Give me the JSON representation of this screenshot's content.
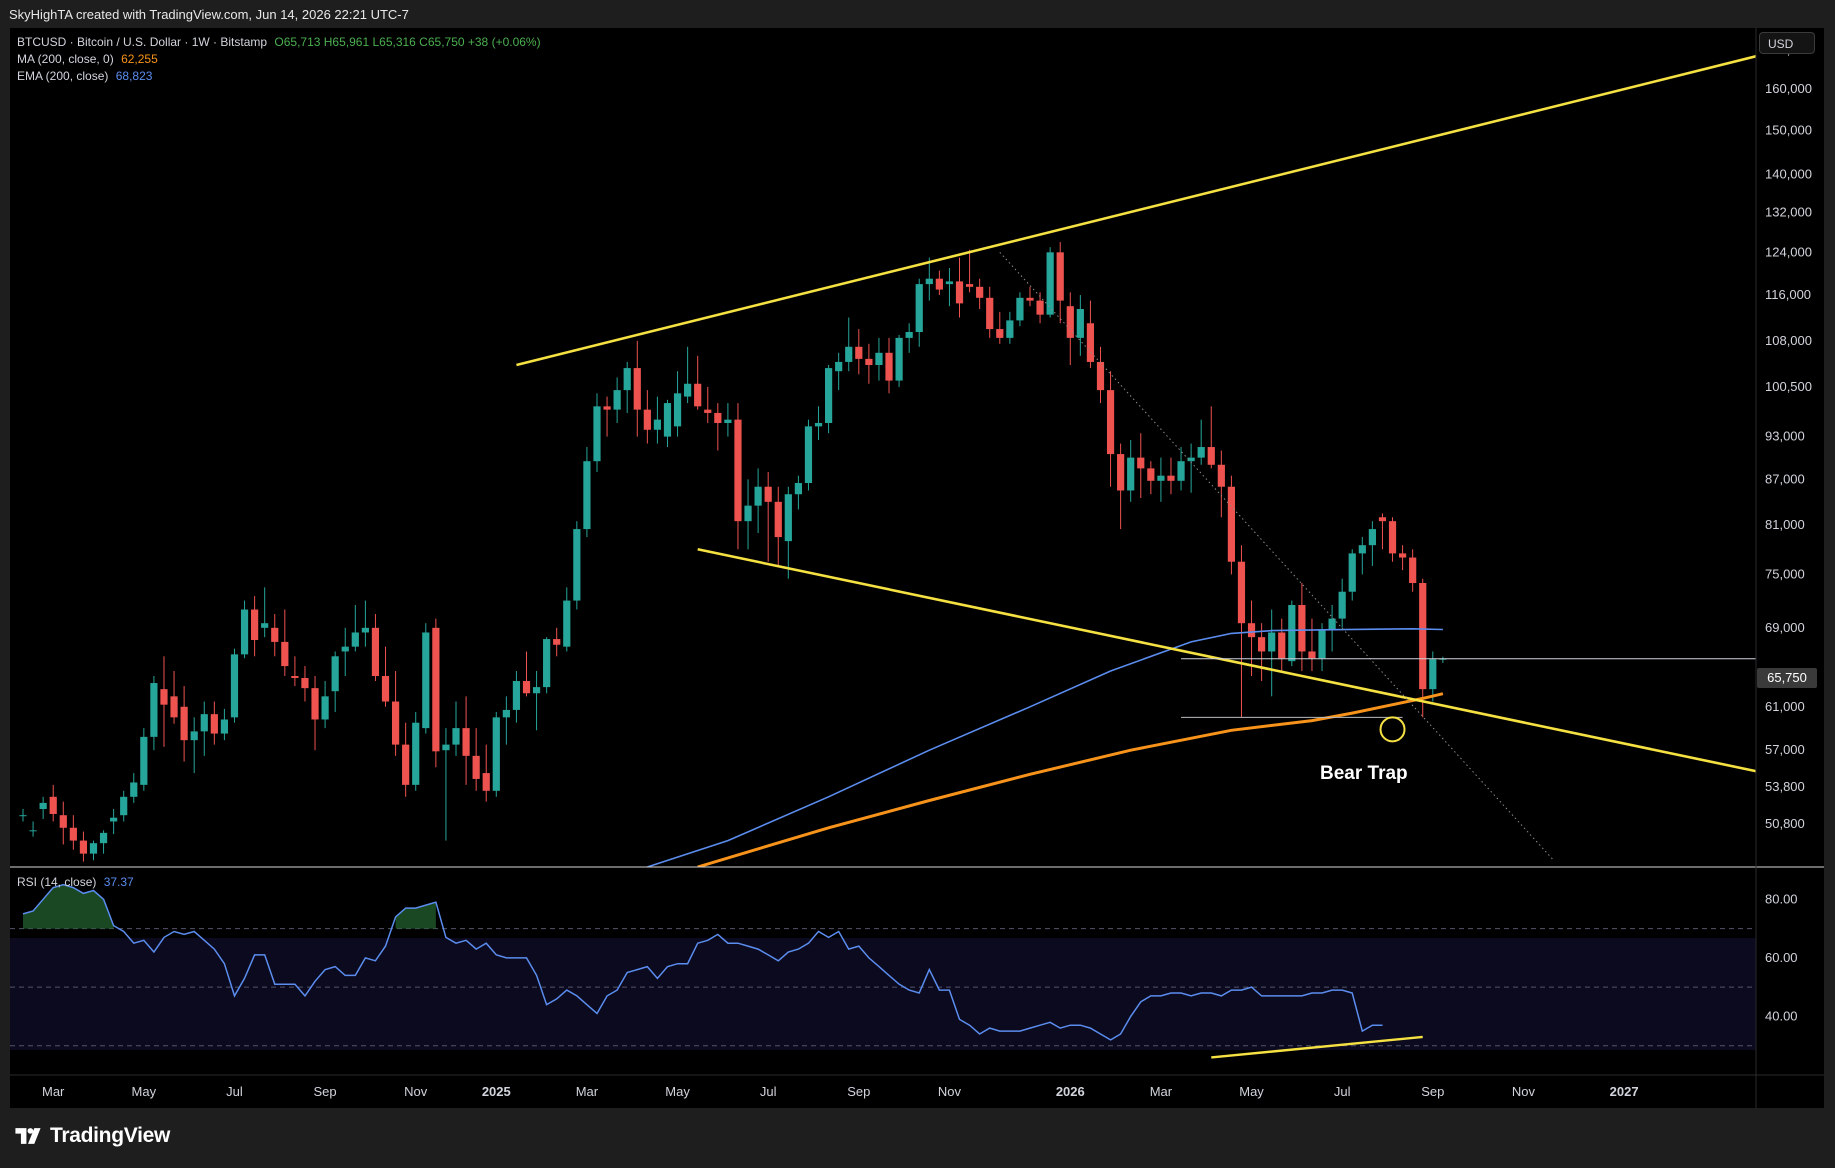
{
  "credit": "SkyHighTA created with TradingView.com, Jun 14, 2026 22:21 UTC-7",
  "legend": {
    "symbol": "BTCUSD · Bitcoin / U.S. Dollar · 1W · Bitstamp",
    "ohlc": "O65,713  H65,961  L65,316  C65,750  +38 (+0.06%)",
    "ma_label": "MA (200, close, 0)",
    "ma_value": "62,255",
    "ema_label": "EMA (200, close)",
    "ema_value": "68,823",
    "rsi_label": "RSI (14, close)",
    "rsi_value": "37.37"
  },
  "currency": "USD",
  "current_price": "65,750",
  "annotation": "Bear Trap",
  "brand": "TradingView",
  "colors": {
    "background": "#000000",
    "up_candle": "#26a69a",
    "down_candle": "#ef5350",
    "trendline": "#f5e142",
    "ma": "#f7931a",
    "ema": "#5b8def",
    "rsi_line": "#5b8def"
  },
  "chart_data": [
    {
      "type": "candlestick",
      "scale": "log",
      "ylim": [
        47500,
        176000
      ],
      "y_ticks": [
        "170,000",
        "160,000",
        "150,000",
        "140,000",
        "132,000",
        "124,000",
        "116,000",
        "108,000",
        "100,500",
        "93,000",
        "87,000",
        "81,000",
        "75,000",
        "69,000",
        "65,750",
        "61,000",
        "57,000",
        "53,800",
        "50,800"
      ],
      "x_ticks": [
        "Mar",
        "May",
        "Jul",
        "Sep",
        "Nov",
        "2025",
        "Mar",
        "May",
        "Jul",
        "Sep",
        "Nov",
        "2026",
        "Mar",
        "May",
        "Jul",
        "Sep",
        "Nov",
        "2027"
      ],
      "x_range_weeks": [
        0,
        173
      ],
      "candles_ohlc": [
        [
          51500,
          52000,
          51000,
          51500
        ],
        [
          50300,
          51000,
          49800,
          50300
        ],
        [
          52000,
          53000,
          51200,
          52500
        ],
        [
          53000,
          54000,
          51000,
          51600
        ],
        [
          51500,
          52600,
          49200,
          50500
        ],
        [
          50500,
          51500,
          48800,
          49500
        ],
        [
          49500,
          50200,
          47900,
          48500
        ],
        [
          48500,
          49500,
          48000,
          49300
        ],
        [
          49300,
          50300,
          48500,
          50100
        ],
        [
          51000,
          52000,
          50000,
          51300
        ],
        [
          51500,
          53500,
          51000,
          53000
        ],
        [
          53000,
          55000,
          52500,
          54200
        ],
        [
          54000,
          59000,
          53500,
          58200
        ],
        [
          58200,
          64000,
          57000,
          63300
        ],
        [
          62700,
          66000,
          57300,
          61200
        ],
        [
          62000,
          64500,
          59400,
          60000
        ],
        [
          61000,
          63000,
          56000,
          57900
        ],
        [
          57900,
          60000,
          55000,
          58700
        ],
        [
          58700,
          61500,
          56500,
          60300
        ],
        [
          60300,
          61500,
          57500,
          58500
        ],
        [
          58500,
          60800,
          57900,
          59800
        ],
        [
          60000,
          66800,
          59500,
          66200
        ],
        [
          66200,
          72000,
          65800,
          71000
        ],
        [
          71000,
          72500,
          66000,
          67700
        ],
        [
          69000,
          73500,
          68000,
          69500
        ],
        [
          69000,
          70500,
          66000,
          67500
        ],
        [
          67500,
          71000,
          64000,
          65000
        ],
        [
          64000,
          66000,
          63000,
          63800
        ],
        [
          63800,
          65000,
          61500,
          62800
        ],
        [
          62800,
          64000,
          57000,
          59800
        ],
        [
          59800,
          63500,
          59000,
          62000
        ],
        [
          62500,
          66500,
          60500,
          66000
        ],
        [
          66500,
          69000,
          64000,
          67000
        ],
        [
          67000,
          71500,
          66500,
          68500
        ],
        [
          68500,
          72000,
          67000,
          69000
        ],
        [
          69000,
          70500,
          63500,
          64000
        ],
        [
          64000,
          67000,
          61000,
          61500
        ],
        [
          61500,
          64500,
          56500,
          57500
        ],
        [
          57500,
          59500,
          53000,
          54000
        ],
        [
          54000,
          60500,
          53500,
          59500
        ],
        [
          59000,
          69500,
          58500,
          68500
        ],
        [
          69000,
          70000,
          55500,
          56900
        ],
        [
          57000,
          59000,
          49500,
          57500
        ],
        [
          57500,
          61500,
          56500,
          59000
        ],
        [
          59000,
          62000,
          54000,
          56500
        ],
        [
          56500,
          59000,
          53500,
          54500
        ],
        [
          55000,
          57500,
          52600,
          53500
        ],
        [
          53500,
          60500,
          53000,
          60000
        ],
        [
          60000,
          62000,
          57500,
          60700
        ],
        [
          60700,
          64500,
          59500,
          63500
        ],
        [
          63500,
          66500,
          62000,
          62300
        ],
        [
          62300,
          64500,
          58800,
          62900
        ],
        [
          62900,
          68000,
          62300,
          67800
        ],
        [
          67800,
          69000,
          66000,
          67200
        ],
        [
          67000,
          73500,
          66500,
          72000
        ],
        [
          72000,
          81500,
          71000,
          80500
        ],
        [
          80500,
          91500,
          79500,
          89500
        ],
        [
          89500,
          99500,
          88000,
          97500
        ],
        [
          97500,
          99000,
          93000,
          97000
        ],
        [
          97000,
          102000,
          95000,
          100000
        ],
        [
          100000,
          104500,
          96500,
          103500
        ],
        [
          103500,
          108000,
          93000,
          97000
        ],
        [
          97000,
          100000,
          92000,
          94000
        ],
        [
          94000,
          99000,
          92000,
          95500
        ],
        [
          93000,
          98500,
          91500,
          98000
        ],
        [
          94500,
          103000,
          93000,
          99500
        ],
        [
          99000,
          107000,
          98000,
          101000
        ],
        [
          101000,
          105500,
          97000,
          97500
        ],
        [
          97000,
          100500,
          95000,
          96500
        ],
        [
          96500,
          98000,
          91000,
          95000
        ],
        [
          95000,
          98000,
          93000,
          95500
        ],
        [
          95500,
          98000,
          78000,
          81500
        ],
        [
          81500,
          87000,
          78000,
          83500
        ],
        [
          83500,
          88500,
          80000,
          86000
        ],
        [
          86000,
          88000,
          76500,
          84000
        ],
        [
          84000,
          86000,
          76000,
          79500
        ],
        [
          79000,
          86000,
          74500,
          85000
        ],
        [
          85000,
          87500,
          83000,
          86500
        ],
        [
          86500,
          95500,
          85500,
          94500
        ],
        [
          94500,
          97500,
          92500,
          95000
        ],
        [
          95000,
          104000,
          93500,
          103500
        ],
        [
          103000,
          106000,
          100000,
          104500
        ],
        [
          104500,
          112000,
          103000,
          107000
        ],
        [
          107000,
          110000,
          102500,
          105000
        ],
        [
          105000,
          107500,
          101000,
          104000
        ],
        [
          104000,
          108500,
          101500,
          106000
        ],
        [
          106000,
          108500,
          99500,
          101500
        ],
        [
          101500,
          109000,
          100500,
          108500
        ],
        [
          108500,
          111000,
          106000,
          109500
        ],
        [
          109500,
          119000,
          107000,
          118000
        ],
        [
          118000,
          123000,
          115000,
          119000
        ],
        [
          119000,
          120500,
          116000,
          117000
        ],
        [
          118000,
          121000,
          114000,
          118500
        ],
        [
          118500,
          123000,
          112000,
          114500
        ],
        [
          118000,
          124500,
          116500,
          117500
        ],
        [
          117500,
          119000,
          113500,
          115500
        ],
        [
          115500,
          117500,
          108500,
          110000
        ],
        [
          110000,
          113000,
          107500,
          108500
        ],
        [
          108500,
          113000,
          107500,
          111500
        ],
        [
          111500,
          116500,
          110500,
          115500
        ],
        [
          115500,
          117500,
          114000,
          115000
        ],
        [
          115000,
          116500,
          111000,
          112500
        ],
        [
          112500,
          125000,
          112000,
          124000
        ],
        [
          124000,
          126000,
          111000,
          115000
        ],
        [
          114000,
          116500,
          104000,
          108500
        ],
        [
          108500,
          116000,
          105500,
          113500
        ],
        [
          111000,
          115000,
          103500,
          104500
        ],
        [
          104500,
          107000,
          98000,
          100000
        ],
        [
          100000,
          103000,
          86000,
          90500
        ],
        [
          90500,
          92000,
          80500,
          85500
        ],
        [
          85500,
          92500,
          84000,
          90000
        ],
        [
          90000,
          93500,
          84500,
          88500
        ],
        [
          88500,
          89500,
          85000,
          86800
        ],
        [
          86800,
          90000,
          84000,
          87500
        ],
        [
          87500,
          90000,
          85000,
          86800
        ],
        [
          86800,
          91500,
          85500,
          89500
        ],
        [
          89500,
          92000,
          85200,
          90000
        ],
        [
          90000,
          95500,
          89000,
          91500
        ],
        [
          91500,
          97500,
          88500,
          89000
        ],
        [
          89000,
          91000,
          82000,
          86000
        ],
        [
          86000,
          87500,
          75000,
          76500
        ],
        [
          76500,
          78500,
          60000,
          69500
        ],
        [
          69500,
          72000,
          64000,
          68000
        ],
        [
          68000,
          69500,
          63500,
          66500
        ],
        [
          66500,
          71000,
          62000,
          68500
        ],
        [
          68500,
          70000,
          64500,
          65800
        ],
        [
          65500,
          72000,
          65000,
          71500
        ],
        [
          71500,
          74000,
          64500,
          66500
        ],
        [
          66500,
          70000,
          64500,
          65800
        ],
        [
          65800,
          69500,
          64500,
          68800
        ],
        [
          68800,
          71500,
          66500,
          70000
        ],
        [
          70000,
          74500,
          69000,
          73000
        ],
        [
          73000,
          78000,
          72000,
          77500
        ],
        [
          77500,
          79500,
          75000,
          78500
        ],
        [
          78500,
          81500,
          76000,
          80500
        ],
        [
          82000,
          82500,
          78000,
          81500
        ],
        [
          81500,
          82000,
          76500,
          77500
        ],
        [
          77500,
          78500,
          75500,
          77000
        ],
        [
          77000,
          78000,
          73000,
          74000
        ],
        [
          74000,
          74500,
          60000,
          62700
        ],
        [
          62700,
          66500,
          61500,
          65700
        ],
        [
          65713,
          65961,
          65316,
          65750
        ]
      ],
      "series": [
        {
          "name": "MA (200, close, 0)",
          "points": [
            [
              67,
              47500
            ],
            [
              80,
              50500
            ],
            [
              90,
              52700
            ],
            [
              100,
              54900
            ],
            [
              110,
              57000
            ],
            [
              120,
              58800
            ],
            [
              128,
              59700
            ],
            [
              132,
              60400
            ],
            [
              136,
              61200
            ],
            [
              139,
              61800
            ],
            [
              141,
              62255
            ]
          ]
        },
        {
          "name": "EMA (200, close)",
          "points": [
            [
              62,
              47500
            ],
            [
              70,
              49500
            ],
            [
              80,
              53000
            ],
            [
              90,
              57000
            ],
            [
              100,
              61000
            ],
            [
              108,
              64500
            ],
            [
              116,
              67500
            ],
            [
              120,
              68400
            ],
            [
              124,
              68700
            ],
            [
              130,
              68800
            ],
            [
              138,
              68900
            ],
            [
              141,
              68823
            ]
          ]
        }
      ],
      "trendlines": [
        {
          "from": [
            49,
            104000
          ],
          "to": [
            173,
            169000
          ]
        },
        {
          "from": [
            67,
            78000
          ],
          "to": [
            173,
            55000
          ]
        },
        {
          "from": [
            97,
            124000
          ],
          "to": [
            152,
            48000
          ],
          "style": "dotted"
        }
      ],
      "horizontal_lines": [
        {
          "y": 65750,
          "x_from": 115,
          "x_to": 173
        },
        {
          "y": 60000,
          "x_from": 115,
          "x_to": 137
        }
      ],
      "marker": {
        "x": 136,
        "y": 60000,
        "label": "Bear Trap"
      }
    },
    {
      "type": "line",
      "name": "RSI (14, close)",
      "ylim": [
        20,
        90
      ],
      "y_ticks": [
        "80.00",
        "60.00",
        "40.00"
      ],
      "levels": [
        70,
        50,
        30
      ],
      "values": [
        75,
        76,
        80,
        84,
        85,
        84,
        82,
        83,
        80,
        71,
        69,
        65,
        66,
        62,
        67,
        69,
        68,
        69,
        66,
        63,
        58,
        47,
        53,
        61,
        61,
        51,
        51,
        51,
        47,
        52,
        56,
        57,
        54,
        54,
        60,
        59,
        64,
        74,
        77,
        77,
        78,
        79,
        67,
        65,
        66,
        63,
        65,
        61,
        60,
        60,
        60,
        54,
        44,
        46,
        49,
        47,
        44,
        41,
        47,
        49,
        55,
        56,
        57,
        53,
        57,
        58,
        58,
        65,
        66,
        68,
        65,
        65,
        64,
        63,
        61,
        59,
        62,
        63,
        65,
        69,
        67,
        69,
        63,
        64,
        60,
        57,
        54,
        51,
        49,
        48,
        56,
        49,
        49,
        39,
        37,
        34,
        36,
        35,
        35,
        35,
        36,
        37,
        38,
        36,
        37,
        37,
        36,
        34,
        32,
        34,
        40,
        45,
        47,
        47,
        48,
        48,
        47,
        48,
        48,
        47,
        49,
        49,
        50,
        47,
        47,
        47,
        47,
        47,
        48,
        48,
        49,
        49,
        48,
        35,
        37,
        37
      ],
      "divergence_line": {
        "from": [
          118,
          26
        ],
        "to": [
          139,
          33
        ]
      }
    }
  ]
}
